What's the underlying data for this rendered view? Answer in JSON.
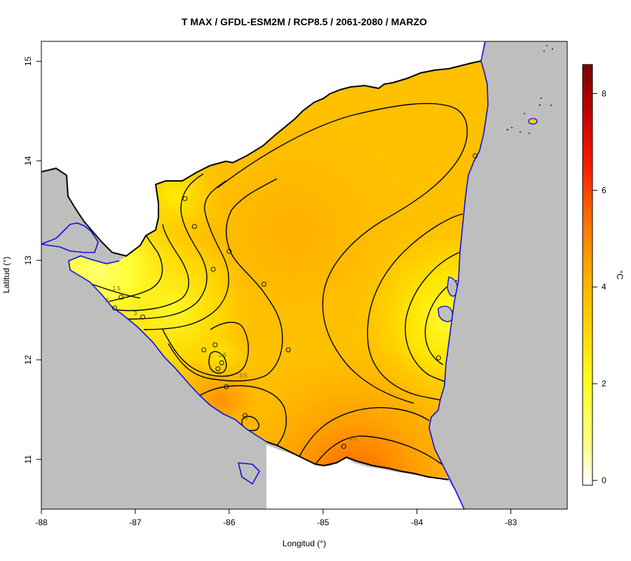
{
  "chart_data": {
    "type": "heatmap",
    "title": "T MAX / GFDL-ESM2M / RCP8.5 / 2061-2080 / MARZO",
    "xlabel": "Longitud (°)",
    "ylabel": "Latitud (°)",
    "xlim": [
      -88,
      -82.4
    ],
    "ylim": [
      10.5,
      15.2
    ],
    "x_ticks": [
      "-88",
      "-87",
      "-86",
      "-85",
      "-84",
      "-83"
    ],
    "y_ticks": [
      "11",
      "12",
      "13",
      "14",
      "15"
    ],
    "colorbar": {
      "label": "°C",
      "range": [
        -0.1,
        8.6
      ],
      "ticks": [
        "0",
        "2",
        "4",
        "6",
        "8"
      ],
      "colors": [
        "#ffffff",
        "#ffff22",
        "#ffc400",
        "#ff9800",
        "#ff5500",
        "#ff0000",
        "#b00000",
        "#800000"
      ]
    },
    "contour_levels": [
      1.5,
      2,
      2.5,
      3,
      3.5,
      4,
      4.5
    ],
    "contour_labels": [
      {
        "text": "1.5",
        "lon": -87.2,
        "lat": 12.7
      },
      {
        "text": "2",
        "lon": -87.3,
        "lat": 12.58
      },
      {
        "text": "3",
        "lon": -87.0,
        "lat": 12.45
      },
      {
        "text": "2.5",
        "lon": -86.07,
        "lat": 12.03
      },
      {
        "text": "3.5",
        "lon": -85.85,
        "lat": 11.82
      },
      {
        "text": "3",
        "lon": -85.82,
        "lat": 11.4
      },
      {
        "text": "4.5",
        "lon": -84.68,
        "lat": 11.19
      }
    ],
    "stations": [
      {
        "lon": -86.47,
        "lat": 13.62
      },
      {
        "lon": -86.37,
        "lat": 13.34
      },
      {
        "lon": -86.0,
        "lat": 13.09
      },
      {
        "lon": -86.17,
        "lat": 12.91
      },
      {
        "lon": -85.63,
        "lat": 12.76
      },
      {
        "lon": -87.15,
        "lat": 12.63
      },
      {
        "lon": -87.22,
        "lat": 12.52
      },
      {
        "lon": -86.92,
        "lat": 12.43
      },
      {
        "lon": -86.15,
        "lat": 12.15
      },
      {
        "lon": -86.27,
        "lat": 12.1
      },
      {
        "lon": -85.37,
        "lat": 12.1
      },
      {
        "lon": -86.08,
        "lat": 11.97
      },
      {
        "lon": -86.12,
        "lat": 11.91
      },
      {
        "lon": -86.03,
        "lat": 11.73
      },
      {
        "lon": -85.83,
        "lat": 11.44
      },
      {
        "lon": -84.78,
        "lat": 11.13
      },
      {
        "lon": -83.77,
        "lat": 12.02
      },
      {
        "lon": -83.38,
        "lat": 14.05
      }
    ]
  }
}
